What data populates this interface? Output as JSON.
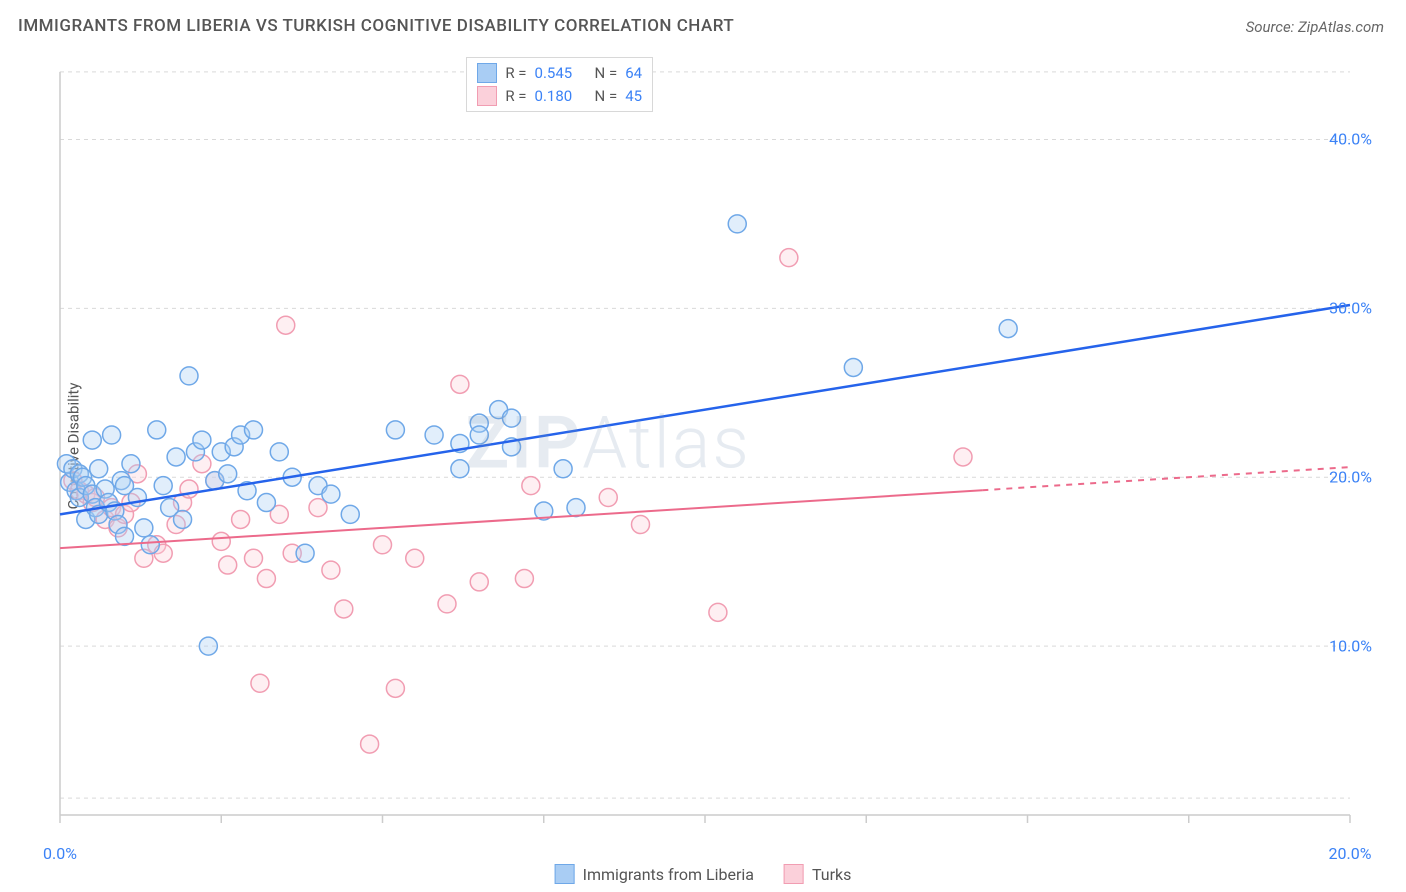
{
  "title": "IMMIGRANTS FROM LIBERIA VS TURKISH COGNITIVE DISABILITY CORRELATION CHART",
  "source_label": "Source: ",
  "source_value": "ZipAtlas.com",
  "y_axis_label": "Cognitive Disability",
  "watermark_prefix": "ZIP",
  "watermark_suffix": "Atlas",
  "chart": {
    "type": "scatter-with-regression",
    "background_color": "#ffffff",
    "grid_color": "#d9d9d9",
    "axis_color": "#cccccc",
    "tick_length": 8,
    "xlim": [
      0,
      20
    ],
    "ylim": [
      0,
      45
    ],
    "xtick_positions": [
      0,
      2.5,
      5,
      7.5,
      10,
      12.5,
      15,
      17.5,
      20
    ],
    "xtick_labels": {
      "0": "0.0%",
      "20": "20.0%"
    },
    "xtick_label_color": "#3b82f6",
    "ytick_positions": [
      10,
      20,
      30,
      40
    ],
    "ytick_labels": {
      "10": "10.0%",
      "20": "20.0%",
      "30": "30.0%",
      "40": "40.0%"
    },
    "ytick_label_color": "#3b82f6",
    "gridlines_y": [
      1,
      10,
      20,
      30,
      40,
      44
    ],
    "marker_radius": 9,
    "marker_stroke_width": 1.5,
    "marker_fill_opacity": 0.35,
    "series": [
      {
        "name": "Immigrants from Liberia",
        "color_stroke": "#6fa8e8",
        "color_fill": "#a9cdf4",
        "line_color": "#2563eb",
        "line_width": 2.5,
        "r_value": "0.545",
        "n_value": "64",
        "regression": {
          "x1": 0,
          "y1": 17.8,
          "x2": 20,
          "y2": 30.2,
          "dash_from_x": null
        },
        "points": [
          [
            0.1,
            20.8
          ],
          [
            0.15,
            19.7
          ],
          [
            0.2,
            20.5
          ],
          [
            0.25,
            19.2
          ],
          [
            0.3,
            20.2
          ],
          [
            0.3,
            18.8
          ],
          [
            0.35,
            20.0
          ],
          [
            0.4,
            19.5
          ],
          [
            0.4,
            17.5
          ],
          [
            0.5,
            22.2
          ],
          [
            0.5,
            19.0
          ],
          [
            0.55,
            18.2
          ],
          [
            0.6,
            20.5
          ],
          [
            0.6,
            17.8
          ],
          [
            0.7,
            19.3
          ],
          [
            0.75,
            18.5
          ],
          [
            0.8,
            22.5
          ],
          [
            0.85,
            18.0
          ],
          [
            0.9,
            17.2
          ],
          [
            0.95,
            19.8
          ],
          [
            1.0,
            19.5
          ],
          [
            1.0,
            16.5
          ],
          [
            1.1,
            20.8
          ],
          [
            1.2,
            18.8
          ],
          [
            1.3,
            17.0
          ],
          [
            1.4,
            16.0
          ],
          [
            1.5,
            22.8
          ],
          [
            1.6,
            19.5
          ],
          [
            1.7,
            18.2
          ],
          [
            1.8,
            21.2
          ],
          [
            1.9,
            17.5
          ],
          [
            2.0,
            26.0
          ],
          [
            2.1,
            21.5
          ],
          [
            2.2,
            22.2
          ],
          [
            2.3,
            10.0
          ],
          [
            2.4,
            19.8
          ],
          [
            2.5,
            21.5
          ],
          [
            2.6,
            20.2
          ],
          [
            2.7,
            21.8
          ],
          [
            2.8,
            22.5
          ],
          [
            2.9,
            19.2
          ],
          [
            3.0,
            22.8
          ],
          [
            3.2,
            18.5
          ],
          [
            3.4,
            21.5
          ],
          [
            3.6,
            20.0
          ],
          [
            3.8,
            15.5
          ],
          [
            4.0,
            19.5
          ],
          [
            4.2,
            19.0
          ],
          [
            4.5,
            17.8
          ],
          [
            5.2,
            22.8
          ],
          [
            5.8,
            22.5
          ],
          [
            6.2,
            20.5
          ],
          [
            6.5,
            23.2
          ],
          [
            6.8,
            24.0
          ],
          [
            7.0,
            23.5
          ],
          [
            7.5,
            18.0
          ],
          [
            7.8,
            20.5
          ],
          [
            8.0,
            18.2
          ],
          [
            10.5,
            35.0
          ],
          [
            12.3,
            26.5
          ],
          [
            14.7,
            28.8
          ],
          [
            6.2,
            22.0
          ],
          [
            6.5,
            22.5
          ],
          [
            7.0,
            21.8
          ]
        ]
      },
      {
        "name": "Turks",
        "color_stroke": "#f19db2",
        "color_fill": "#fbd0da",
        "line_color": "#ec6a8b",
        "line_width": 2,
        "r_value": "0.180",
        "n_value": "45",
        "regression": {
          "x1": 0,
          "y1": 15.8,
          "x2": 20,
          "y2": 20.6,
          "dash_from_x": 14.3
        },
        "points": [
          [
            0.2,
            19.8
          ],
          [
            0.3,
            19.2
          ],
          [
            0.4,
            19.0
          ],
          [
            0.5,
            18.5
          ],
          [
            0.55,
            18.8
          ],
          [
            0.7,
            17.5
          ],
          [
            0.8,
            18.2
          ],
          [
            0.9,
            17.0
          ],
          [
            1.0,
            17.8
          ],
          [
            1.2,
            20.2
          ],
          [
            1.3,
            15.2
          ],
          [
            1.5,
            16.0
          ],
          [
            1.6,
            15.5
          ],
          [
            1.8,
            17.2
          ],
          [
            1.9,
            18.5
          ],
          [
            2.0,
            19.3
          ],
          [
            2.2,
            20.8
          ],
          [
            2.4,
            19.8
          ],
          [
            2.5,
            16.2
          ],
          [
            2.6,
            14.8
          ],
          [
            2.8,
            17.5
          ],
          [
            3.0,
            15.2
          ],
          [
            3.1,
            7.8
          ],
          [
            3.2,
            14.0
          ],
          [
            3.4,
            17.8
          ],
          [
            3.5,
            29.0
          ],
          [
            3.6,
            15.5
          ],
          [
            4.0,
            18.2
          ],
          [
            4.2,
            14.5
          ],
          [
            4.4,
            12.2
          ],
          [
            4.8,
            4.2
          ],
          [
            5.0,
            16.0
          ],
          [
            5.2,
            7.5
          ],
          [
            5.5,
            15.2
          ],
          [
            6.0,
            12.5
          ],
          [
            6.2,
            25.5
          ],
          [
            6.5,
            13.8
          ],
          [
            7.2,
            14.0
          ],
          [
            7.3,
            19.5
          ],
          [
            8.5,
            18.8
          ],
          [
            9.0,
            17.2
          ],
          [
            10.2,
            12.0
          ],
          [
            11.3,
            33.0
          ],
          [
            14.0,
            21.2
          ],
          [
            1.1,
            18.5
          ]
        ]
      }
    ]
  },
  "legend_top": {
    "r_label": "R =",
    "n_label": "N ="
  },
  "legend_bottom": {
    "items": [
      "Immigrants from Liberia",
      "Turks"
    ]
  }
}
